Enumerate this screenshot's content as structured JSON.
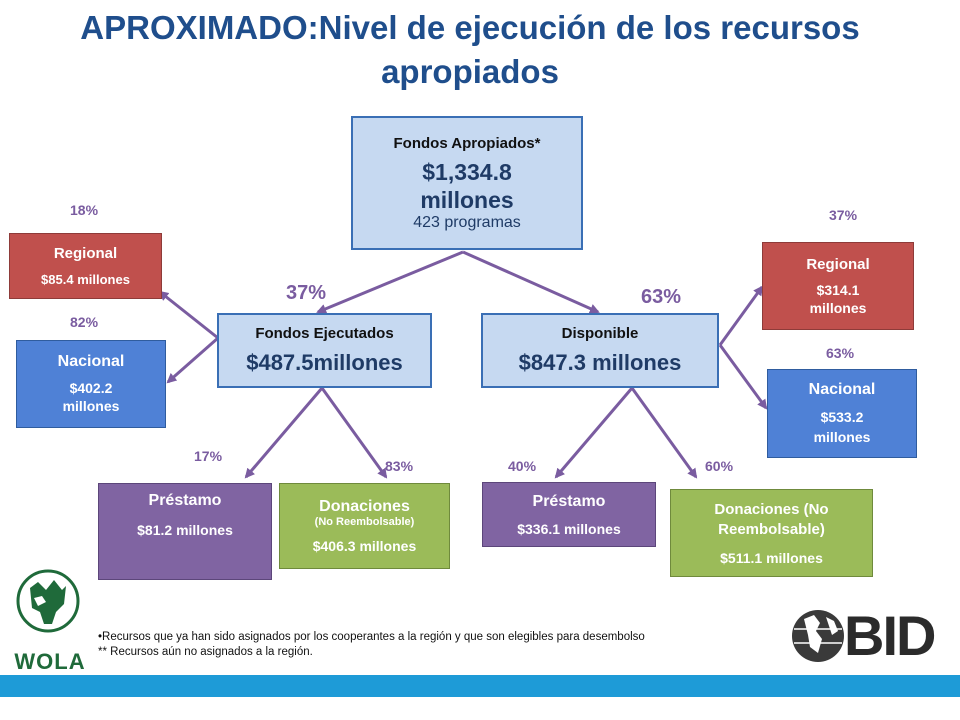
{
  "title": "APROXIMADO:Nivel de ejecución de los recursos apropiados",
  "apropiados": {
    "label": "Fondos Apropiados*",
    "amount": "$1,334.8 millones",
    "programs": "423 programas"
  },
  "ejecutados": {
    "label": "Fondos Ejecutados",
    "amount": "$487.5millones",
    "pct": "37%"
  },
  "disponible": {
    "label": "Disponible",
    "amount": "$847.3 millones",
    "pct": "63%"
  },
  "left": {
    "regional": {
      "pct": "18%",
      "label": "Regional",
      "amount": "$85.4 millones"
    },
    "nacional": {
      "pct": "82%",
      "label": "Nacional",
      "amount": "$402.2 millones"
    },
    "prestamo": {
      "pct": "17%",
      "label": "Préstamo",
      "amount": "$81.2 millones"
    },
    "donaciones": {
      "pct": "83%",
      "label": "Donaciones",
      "sublabel": "(No Reembolsable)",
      "amount": "$406.3 millones"
    }
  },
  "right": {
    "regional": {
      "pct": "37%",
      "label": "Regional",
      "amount": "$314.1 millones"
    },
    "nacional": {
      "pct": "63%",
      "label": "Nacional",
      "amount": "$533.2 millones"
    },
    "prestamo": {
      "pct": "40%",
      "label": "Préstamo",
      "amount": "$336.1 millones"
    },
    "donaciones": {
      "pct": "60%",
      "label": "Donaciones (No Reembolsable)",
      "amount": "$511.1 millones"
    }
  },
  "footnotes": [
    "•Recursos que ya han sido asignados por los cooperantes a la región y que son elegibles para desembolso",
    "** Recursos aún no asignados a la región."
  ],
  "logos": {
    "wola": "WOLA",
    "bid": "BID"
  },
  "colors": {
    "arrow": "#7A5CA0",
    "title": "#1F4E8C",
    "bar": "#1E9BD7"
  }
}
